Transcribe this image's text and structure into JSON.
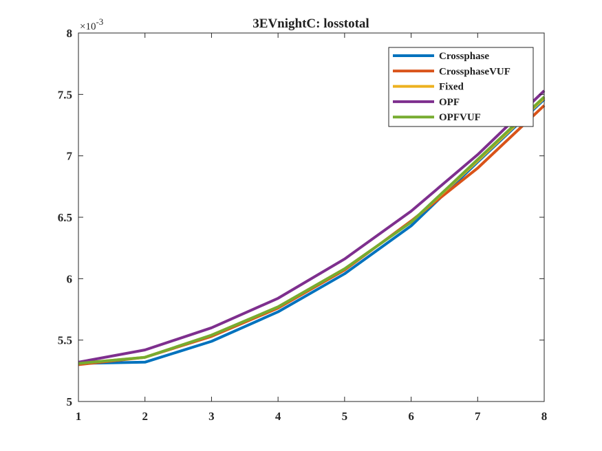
{
  "chart_data": {
    "type": "line",
    "title": "3EVnightC: losstotal",
    "xlabel": "",
    "ylabel": "",
    "x": [
      1,
      2,
      3,
      4,
      5,
      6,
      7,
      8
    ],
    "xlim": [
      1,
      8
    ],
    "ylim": [
      5,
      8
    ],
    "xticks": [
      1,
      2,
      3,
      4,
      5,
      6,
      7,
      8
    ],
    "yticks": [
      5,
      5.5,
      6,
      6.5,
      7,
      7.5,
      8
    ],
    "ytick_labels": [
      "5",
      "5.5",
      "6",
      "6.5",
      "7",
      "7.5",
      "8"
    ],
    "y_multiplier_label": "×10",
    "y_multiplier_exponent": "-3",
    "grid": false,
    "legend_position": "top-right",
    "series": [
      {
        "name": "Crossphase",
        "color": "#0072BD",
        "values": [
          5.31,
          5.32,
          5.49,
          5.73,
          6.04,
          6.43,
          6.95,
          7.46
        ]
      },
      {
        "name": "CrossphaseVUF",
        "color": "#D95319",
        "values": [
          5.3,
          5.36,
          5.53,
          5.76,
          6.07,
          6.47,
          6.9,
          7.41
        ]
      },
      {
        "name": "Fixed",
        "color": "#EDB120",
        "values": [
          5.31,
          5.36,
          5.54,
          5.77,
          6.08,
          6.46,
          6.96,
          7.47
        ]
      },
      {
        "name": "OPF",
        "color": "#7E2F8E",
        "values": [
          5.32,
          5.42,
          5.6,
          5.84,
          6.16,
          6.55,
          7.01,
          7.53
        ]
      },
      {
        "name": "OPFVUF",
        "color": "#77AC30",
        "values": [
          5.31,
          5.36,
          5.54,
          5.77,
          6.08,
          6.46,
          6.97,
          7.48
        ]
      }
    ]
  }
}
